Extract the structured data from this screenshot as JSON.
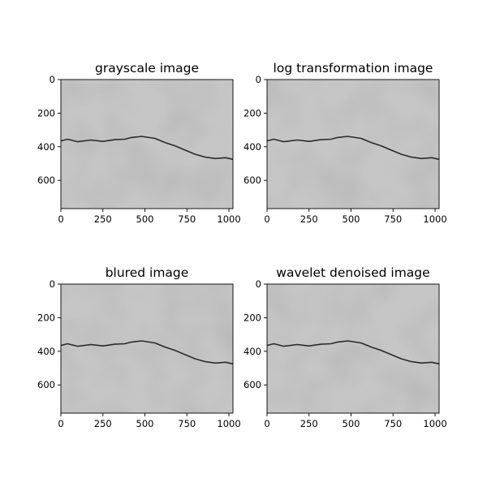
{
  "chart_data": [
    {
      "type": "image",
      "title": "grayscale image",
      "xlim": [
        0,
        1024
      ],
      "ylim": [
        768,
        0
      ],
      "xticks": [
        0,
        250,
        500,
        750,
        1000
      ],
      "yticks": [
        0,
        200,
        400,
        600
      ],
      "crack": [
        [
          0,
          365
        ],
        [
          40,
          355
        ],
        [
          100,
          370
        ],
        [
          180,
          360
        ],
        [
          250,
          368
        ],
        [
          320,
          358
        ],
        [
          380,
          355
        ],
        [
          420,
          345
        ],
        [
          480,
          338
        ],
        [
          560,
          350
        ],
        [
          620,
          375
        ],
        [
          680,
          395
        ],
        [
          740,
          420
        ],
        [
          800,
          445
        ],
        [
          860,
          462
        ],
        [
          920,
          470
        ],
        [
          980,
          465
        ],
        [
          1024,
          475
        ]
      ]
    },
    {
      "type": "image",
      "title": "log transformation image",
      "xlim": [
        0,
        1024
      ],
      "ylim": [
        768,
        0
      ],
      "xticks": [
        0,
        250,
        500,
        750,
        1000
      ],
      "yticks": [
        0,
        200,
        400,
        600
      ],
      "crack": [
        [
          0,
          365
        ],
        [
          40,
          355
        ],
        [
          100,
          370
        ],
        [
          180,
          360
        ],
        [
          250,
          368
        ],
        [
          320,
          358
        ],
        [
          380,
          355
        ],
        [
          420,
          345
        ],
        [
          480,
          338
        ],
        [
          560,
          350
        ],
        [
          620,
          375
        ],
        [
          680,
          395
        ],
        [
          740,
          420
        ],
        [
          800,
          445
        ],
        [
          860,
          462
        ],
        [
          920,
          470
        ],
        [
          980,
          465
        ],
        [
          1024,
          475
        ]
      ]
    },
    {
      "type": "image",
      "title": "blured image",
      "xlim": [
        0,
        1024
      ],
      "ylim": [
        768,
        0
      ],
      "xticks": [
        0,
        250,
        500,
        750,
        1000
      ],
      "yticks": [
        0,
        200,
        400,
        600
      ],
      "crack": [
        [
          0,
          365
        ],
        [
          40,
          355
        ],
        [
          100,
          370
        ],
        [
          180,
          360
        ],
        [
          250,
          368
        ],
        [
          320,
          358
        ],
        [
          380,
          355
        ],
        [
          420,
          345
        ],
        [
          480,
          338
        ],
        [
          560,
          350
        ],
        [
          620,
          375
        ],
        [
          680,
          395
        ],
        [
          740,
          420
        ],
        [
          800,
          445
        ],
        [
          860,
          462
        ],
        [
          920,
          470
        ],
        [
          980,
          465
        ],
        [
          1024,
          475
        ]
      ]
    },
    {
      "type": "image",
      "title": "wavelet denoised image",
      "xlim": [
        0,
        1024
      ],
      "ylim": [
        768,
        0
      ],
      "xticks": [
        0,
        250,
        500,
        750,
        1000
      ],
      "yticks": [
        0,
        200,
        400,
        600
      ],
      "crack": [
        [
          0,
          365
        ],
        [
          40,
          355
        ],
        [
          100,
          370
        ],
        [
          180,
          360
        ],
        [
          250,
          368
        ],
        [
          320,
          358
        ],
        [
          380,
          355
        ],
        [
          420,
          345
        ],
        [
          480,
          338
        ],
        [
          560,
          350
        ],
        [
          620,
          375
        ],
        [
          680,
          395
        ],
        [
          740,
          420
        ],
        [
          800,
          445
        ],
        [
          860,
          462
        ],
        [
          920,
          470
        ],
        [
          980,
          465
        ],
        [
          1024,
          475
        ]
      ]
    }
  ],
  "colors": {
    "background_light": "#c8c8c8",
    "background_dark": "#8c8c8c",
    "crack": "#2a2a2a",
    "axis": "#000000"
  }
}
